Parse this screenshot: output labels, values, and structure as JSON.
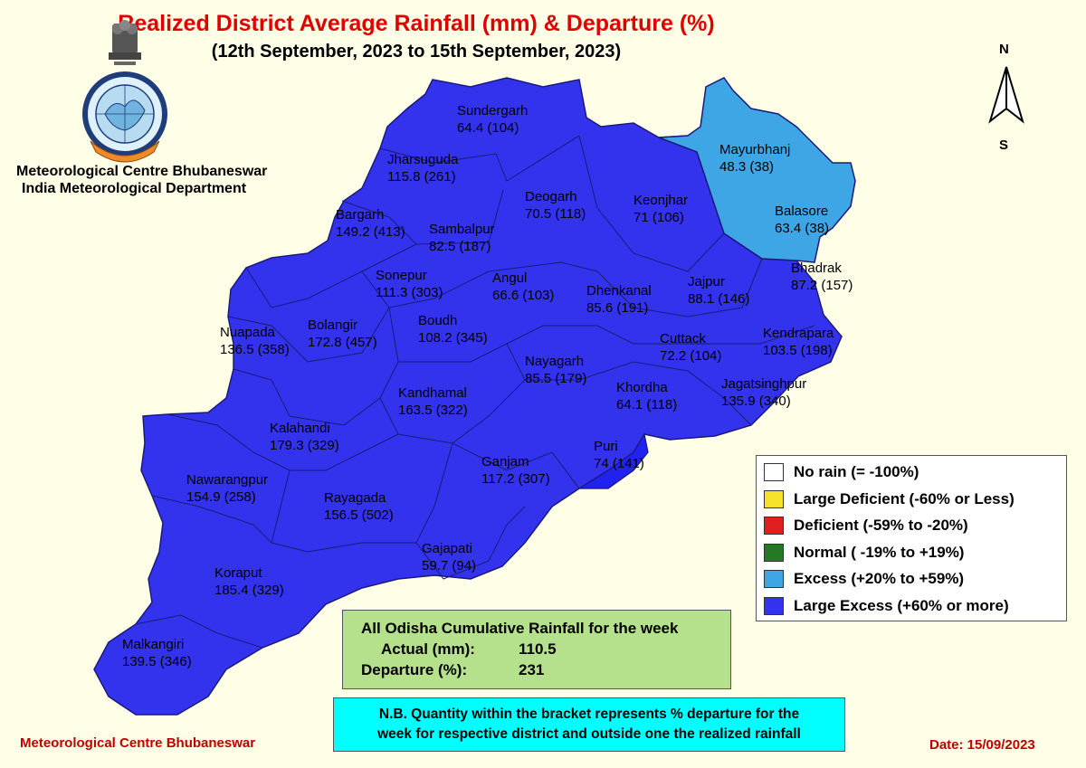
{
  "title": "Realized District Average Rainfall (mm) & Departure (%)",
  "subtitle": "(12th September, 2023 to 15th September, 2023)",
  "org_line1": "Meteorological Centre Bhubaneswar",
  "org_line2": "India Meteorological Department",
  "footer_left": "Meteorological Centre Bhubaneswar",
  "footer_date": "Date: 15/09/2023",
  "compass": {
    "north": "N",
    "south": "S"
  },
  "colors": {
    "large_excess": "#3333ee",
    "excess": "#3fa6e6",
    "border": "#1a1a7a",
    "background": "#fffee6"
  },
  "districts": [
    {
      "name": "Sundergarh",
      "value": "64.4 (104)",
      "category": "large_excess"
    },
    {
      "name": "Jharsuguda",
      "value": "115.8 (261)",
      "category": "large_excess"
    },
    {
      "name": "Deogarh",
      "value": "70.5 (118)",
      "category": "large_excess"
    },
    {
      "name": "Keonjhar",
      "value": "71 (106)",
      "category": "large_excess"
    },
    {
      "name": "Mayurbhanj",
      "value": "48.3 (38)",
      "category": "excess"
    },
    {
      "name": "Balasore",
      "value": "63.4 (38)",
      "category": "excess"
    },
    {
      "name": "Bargarh",
      "value": "149.2 (413)",
      "category": "large_excess"
    },
    {
      "name": "Sambalpur",
      "value": "82.5 (187)",
      "category": "large_excess"
    },
    {
      "name": "Bhadrak",
      "value": "87.2 (157)",
      "category": "large_excess"
    },
    {
      "name": "Sonepur",
      "value": "111.3 (303)",
      "category": "large_excess"
    },
    {
      "name": "Angul",
      "value": "66.6 (103)",
      "category": "large_excess"
    },
    {
      "name": "Dhenkanal",
      "value": "85.6 (191)",
      "category": "large_excess"
    },
    {
      "name": "Jajpur",
      "value": "88.1 (146)",
      "category": "large_excess"
    },
    {
      "name": "Nuapada",
      "value": "136.5 (358)",
      "category": "large_excess"
    },
    {
      "name": "Bolangir",
      "value": "172.8 (457)",
      "category": "large_excess"
    },
    {
      "name": "Boudh",
      "value": "108.2 (345)",
      "category": "large_excess"
    },
    {
      "name": "Kendrapara",
      "value": "103.5 (198)",
      "category": "large_excess"
    },
    {
      "name": "Cuttack",
      "value": "72.2 (104)",
      "category": "large_excess"
    },
    {
      "name": "Nayagarh",
      "value": "85.5 (179)",
      "category": "large_excess"
    },
    {
      "name": "Jagatsinghpur",
      "value": "135.9 (340)",
      "category": "large_excess"
    },
    {
      "name": "Khordha",
      "value": "64.1 (118)",
      "category": "large_excess"
    },
    {
      "name": "Kandhamal",
      "value": "163.5 (322)",
      "category": "large_excess"
    },
    {
      "name": "Kalahandi",
      "value": "179.3 (329)",
      "category": "large_excess"
    },
    {
      "name": "Puri",
      "value": "74 (141)",
      "category": "large_excess"
    },
    {
      "name": "Ganjam",
      "value": "117.2 (307)",
      "category": "large_excess"
    },
    {
      "name": "Nawarangpur",
      "value": "154.9 (258)",
      "category": "large_excess"
    },
    {
      "name": "Rayagada",
      "value": "156.5 (502)",
      "category": "large_excess"
    },
    {
      "name": "Gajapati",
      "value": "59.7 (94)",
      "category": "large_excess"
    },
    {
      "name": "Koraput",
      "value": "185.4 (329)",
      "category": "large_excess"
    },
    {
      "name": "Malkangiri",
      "value": "139.5 (346)",
      "category": "large_excess"
    }
  ],
  "legend": [
    {
      "label": "No rain (= -100%)",
      "color": "#ffffff"
    },
    {
      "label": "Large Deficient (-60% or Less)",
      "color": "#f5e02a"
    },
    {
      "label": "Deficient (-59% to -20%)",
      "color": "#e02020"
    },
    {
      "label": "Normal ( -19% to +19%)",
      "color": "#237a23"
    },
    {
      "label": "Excess (+20% to +59%)",
      "color": "#3fa6e6"
    },
    {
      "label": "Large Excess (+60% or more)",
      "color": "#3333ee"
    }
  ],
  "summary": {
    "heading": "All Odisha Cumulative Rainfall for the week",
    "actual_label": "Actual (mm):",
    "actual_value": "110.5",
    "departure_label": "Departure (%):",
    "departure_value": "231"
  },
  "note": {
    "line1": "N.B. Quantity within the bracket represents % departure for the",
    "line2": "week for respective district and outside one the realized rainfall"
  }
}
